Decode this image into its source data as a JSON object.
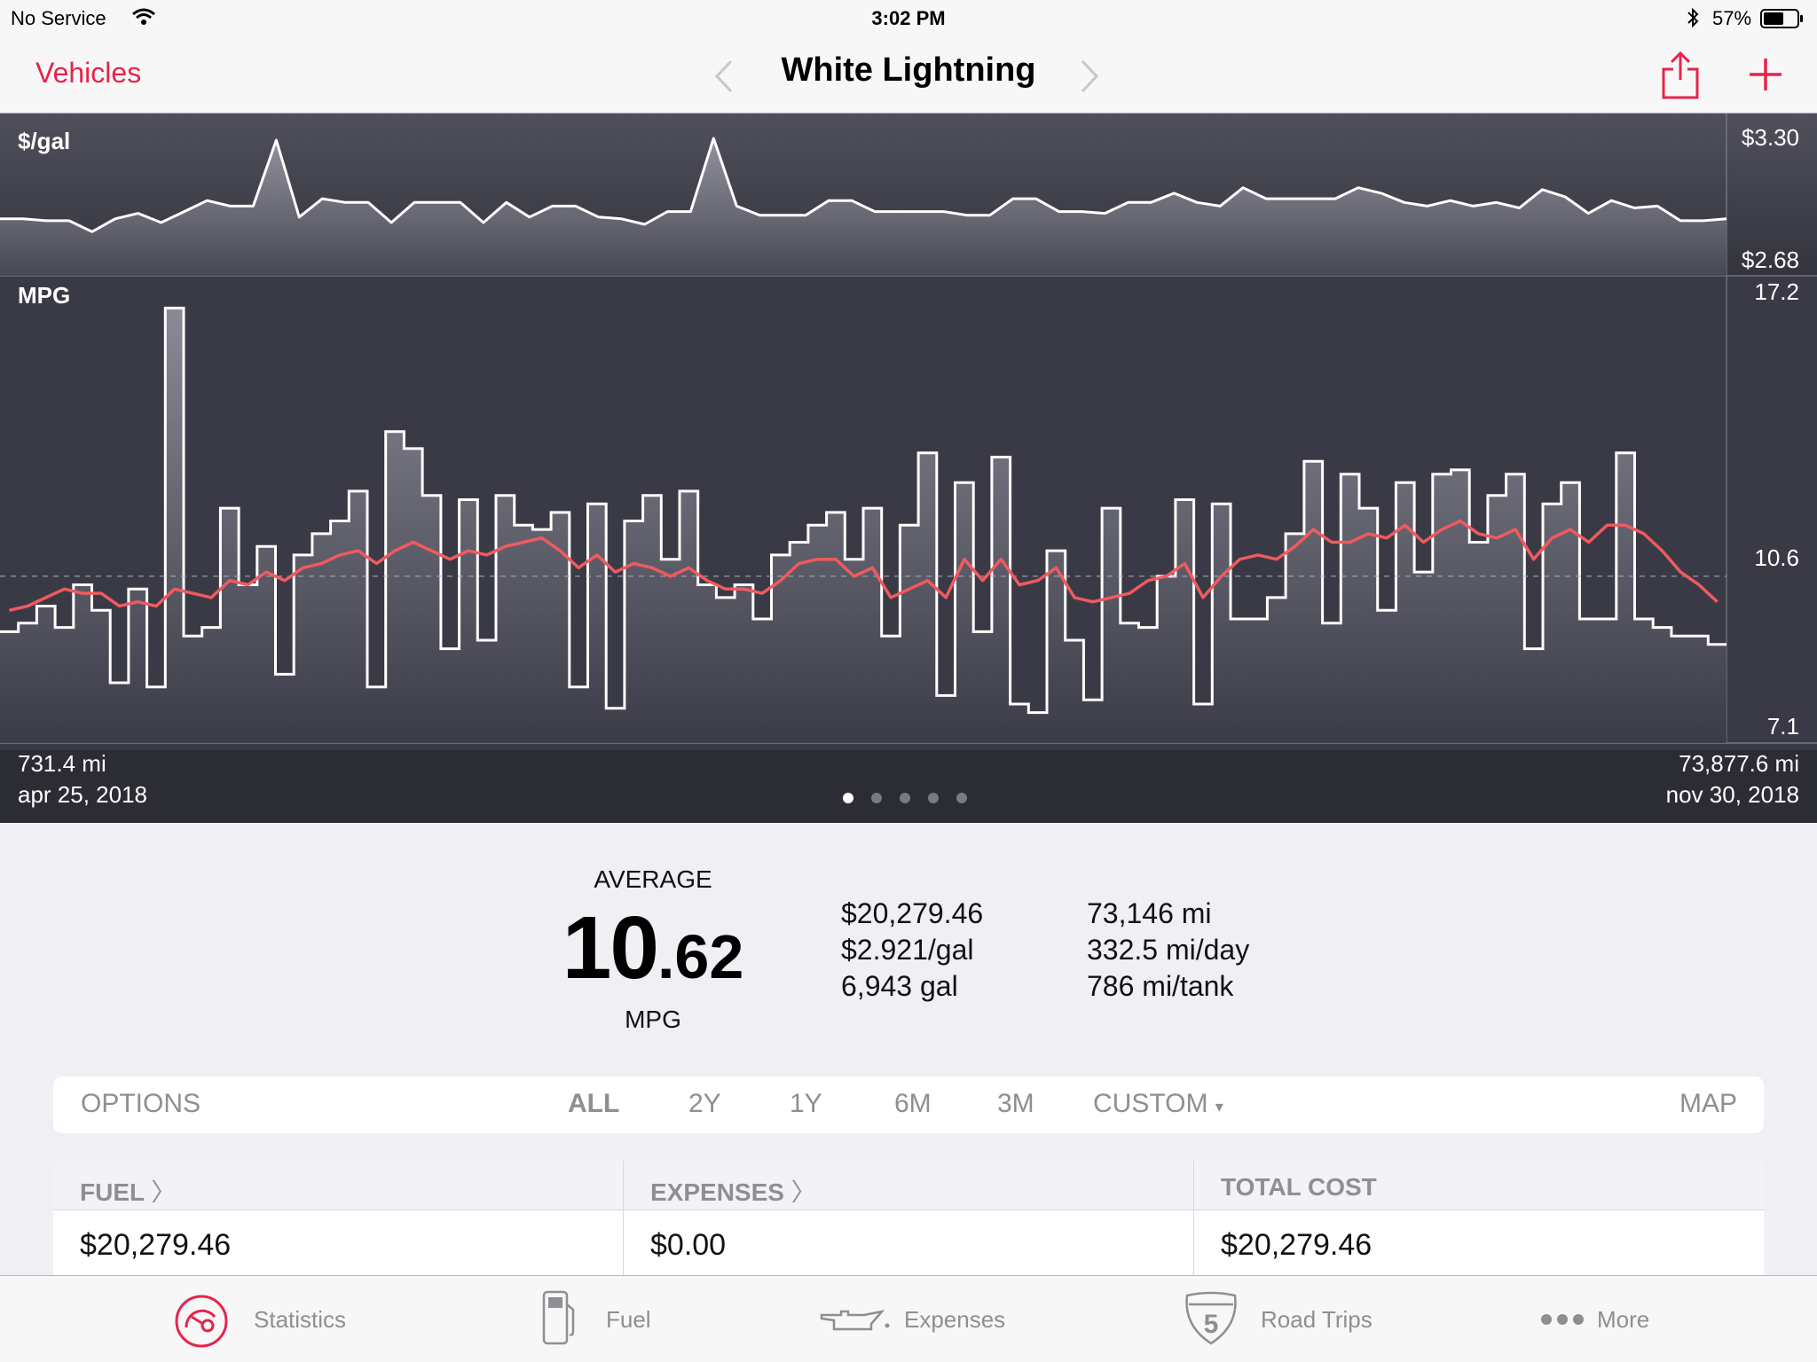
{
  "status_bar": {
    "carrier": "No Service",
    "time": "3:02 PM",
    "battery": "57%"
  },
  "nav": {
    "back_label": "Vehicles",
    "title": "White Lightning"
  },
  "chart": {
    "price_label": "$/gal",
    "price_max": "$3.30",
    "price_min": "$2.68",
    "mpg_label": "MPG",
    "mpg_max": "17.2",
    "mpg_mid": "10.6",
    "mpg_min": "7.1",
    "start_odometer": "731.4 mi",
    "start_date": "apr 25, 2018",
    "end_odometer": "73,877.6 mi",
    "end_date": "nov 30, 2018",
    "page_count": 5,
    "current_page": 1
  },
  "chart_data": [
    {
      "type": "area",
      "title": "$/gal",
      "ylim": [
        2.68,
        3.3
      ],
      "values": [
        2.86,
        2.86,
        2.85,
        2.85,
        2.79,
        2.86,
        2.89,
        2.84,
        2.9,
        2.96,
        2.93,
        2.93,
        3.29,
        2.87,
        2.97,
        2.95,
        2.95,
        2.84,
        2.95,
        2.95,
        2.95,
        2.84,
        2.95,
        2.87,
        2.93,
        2.93,
        2.87,
        2.86,
        2.83,
        2.9,
        2.9,
        3.3,
        2.93,
        2.88,
        2.88,
        2.88,
        2.96,
        2.96,
        2.9,
        2.9,
        2.9,
        2.9,
        2.88,
        2.88,
        2.97,
        2.97,
        2.9,
        2.9,
        2.89,
        2.95,
        2.95,
        3.0,
        2.95,
        2.93,
        3.03,
        2.97,
        2.97,
        2.97,
        2.97,
        3.03,
        3.0,
        2.95,
        2.93,
        2.96,
        2.93,
        2.95,
        2.92,
        3.02,
        2.98,
        2.89,
        2.96,
        2.92,
        2.93,
        2.85,
        2.85,
        2.86
      ]
    },
    {
      "type": "line",
      "title": "MPG",
      "ylim": [
        7.1,
        17.2
      ],
      "series": [
        {
          "values": [
            9.3,
            9.5,
            9.9,
            9.4,
            10.4,
            9.8,
            8.1,
            10.3,
            8.0,
            16.9,
            9.2,
            9.4,
            12.2,
            10.4,
            11.3,
            8.3,
            11.1,
            11.6,
            11.9,
            12.6,
            8.0,
            14.0,
            13.6,
            12.5,
            8.9,
            12.4,
            9.1,
            12.5,
            11.8,
            11.7,
            12.1,
            8.0,
            12.3,
            7.5,
            11.9,
            12.5,
            11.0,
            12.6,
            10.4,
            10.1,
            10.4,
            9.6,
            11.1,
            11.4,
            11.8,
            12.1,
            11.0,
            12.2,
            9.2,
            11.8,
            13.5,
            7.8,
            12.8,
            9.3,
            13.4,
            7.6,
            7.4,
            11.2,
            9.1,
            7.7,
            12.2,
            9.5,
            9.4,
            10.6,
            12.4,
            7.6,
            12.3,
            9.6,
            9.6,
            10.1,
            11.6,
            13.3,
            9.5,
            13.0,
            12.2,
            9.8,
            12.8,
            10.7,
            13.0,
            13.1,
            11.4,
            12.5,
            13.0,
            8.9,
            12.3,
            12.8,
            9.6,
            9.6,
            13.5,
            9.6,
            9.4,
            9.2,
            9.2,
            9.0
          ]
        },
        {
          "values": [
            9.8,
            9.9,
            10.1,
            10.3,
            10.2,
            10.2,
            9.9,
            10.0,
            9.9,
            10.3,
            10.2,
            10.1,
            10.5,
            10.4,
            10.7,
            10.5,
            10.8,
            10.9,
            11.1,
            11.2,
            10.9,
            11.2,
            11.4,
            11.2,
            11.0,
            11.2,
            11.1,
            11.3,
            11.4,
            11.5,
            11.2,
            10.8,
            11.1,
            10.7,
            10.9,
            10.8,
            10.6,
            10.8,
            10.5,
            10.3,
            10.3,
            10.2,
            10.5,
            10.9,
            11.0,
            11.0,
            10.6,
            10.8,
            10.1,
            10.3,
            10.5,
            10.1,
            11.0,
            10.5,
            11.0,
            10.4,
            10.5,
            10.8,
            10.1,
            10.0,
            10.1,
            10.2,
            10.5,
            10.6,
            10.9,
            10.1,
            10.6,
            11.0,
            11.1,
            11.0,
            11.3,
            11.7,
            11.4,
            11.4,
            11.6,
            11.5,
            11.8,
            11.4,
            11.7,
            11.9,
            11.6,
            11.5,
            11.7,
            11.0,
            11.5,
            11.7,
            11.4,
            11.8,
            11.8,
            11.6,
            11.2,
            10.7,
            10.4,
            10.0
          ]
        }
      ]
    }
  ],
  "summary": {
    "average_label": "AVERAGE",
    "average_int": "10",
    "average_dec": ".62",
    "average_unit": "MPG",
    "col1": [
      "$20,279.46",
      "$2.921/gal",
      "6,943 gal"
    ],
    "col2": [
      "73,146 mi",
      "332.5 mi/day",
      "786 mi/tank"
    ]
  },
  "filter_bar": {
    "options": "OPTIONS",
    "ranges": [
      "ALL",
      "2Y",
      "1Y",
      "6M",
      "3M"
    ],
    "custom": "CUSTOM",
    "map": "MAP",
    "selected": "ALL"
  },
  "costs": {
    "fuel_label": "FUEL",
    "fuel_value": "$20,279.46",
    "expenses_label": "EXPENSES",
    "expenses_value": "$0.00",
    "total_label": "TOTAL COST",
    "total_value": "$20,279.46"
  },
  "tabs": {
    "statistics": "Statistics",
    "fuel": "Fuel",
    "expenses": "Expenses",
    "road_trips": "Road Trips",
    "road_trips_badge": "5",
    "more": "More"
  },
  "colors": {
    "accent": "#e8234a",
    "avg_line": "#f05a5e",
    "chart_bg": "#2c2c35"
  }
}
